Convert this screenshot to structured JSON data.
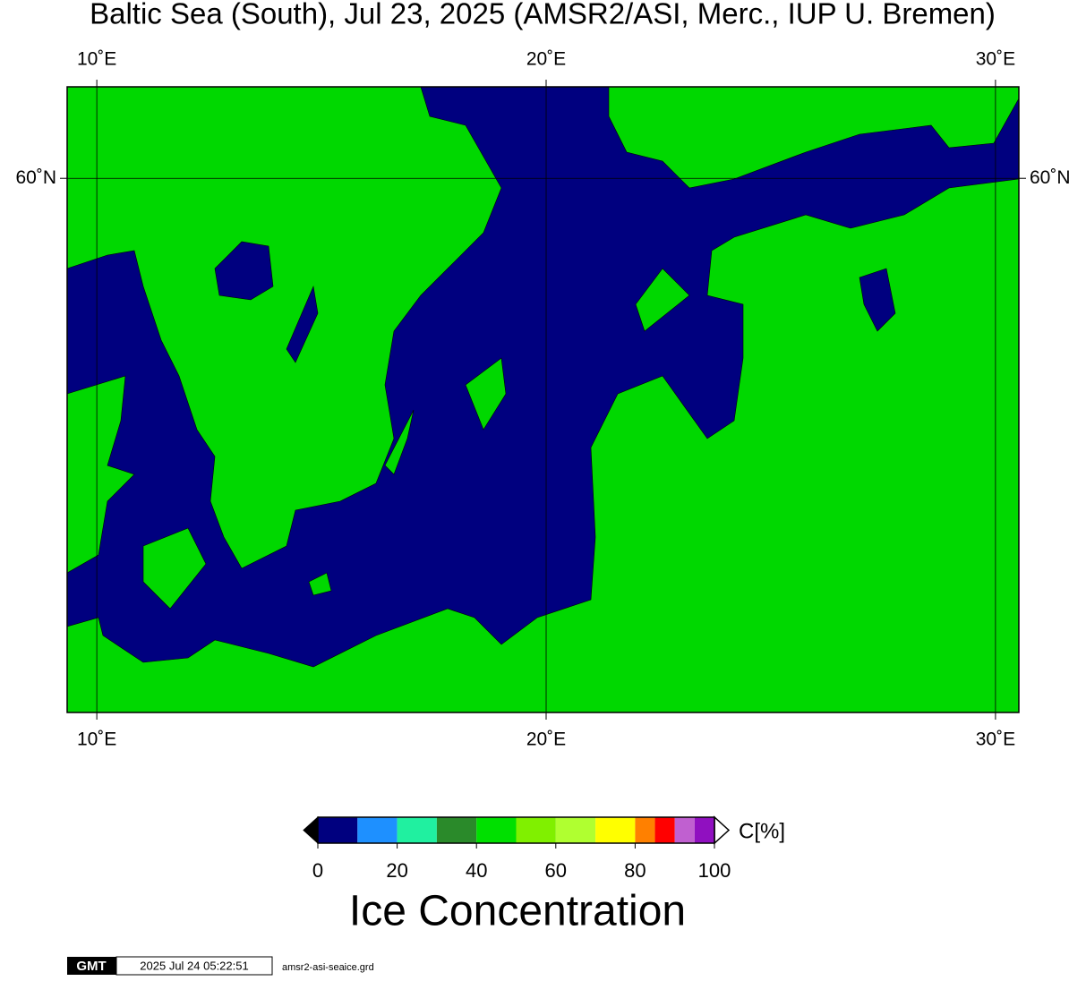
{
  "chart_data": {
    "type": "map",
    "title": "Baltic Sea (South), Jul 23, 2025 (AMSR2/ASI, Merc., IUP U. Bremen)",
    "xlim": [
      9.34,
      30.52
    ],
    "ylim": [
      53.52,
      61.0
    ],
    "xticks": [
      {
        "value": 10,
        "label": "10˚E"
      },
      {
        "value": 20,
        "label": "20˚E"
      },
      {
        "value": 30,
        "label": "30˚E"
      }
    ],
    "yticks": [
      {
        "value": 60,
        "label": "60˚N"
      }
    ],
    "grid": true,
    "colorbar": {
      "label": "Ice Concentration",
      "unit": "C[%]",
      "range": [
        0,
        100
      ],
      "ticks": [
        0,
        20,
        40,
        60,
        80,
        100
      ],
      "levels": [
        0,
        10,
        20,
        30,
        40,
        50,
        60,
        70,
        80,
        85,
        90,
        95,
        100
      ],
      "colors": [
        "#00007f",
        "#1e90ff",
        "#20f0a0",
        "#2a8a2a",
        "#00e000",
        "#80f000",
        "#b0ff30",
        "#ffff00",
        "#ff8000",
        "#ff0000",
        "#c060d0",
        "#9010c0"
      ]
    },
    "footer": {
      "logo": "GMT",
      "timestamp": "2025 Jul 24 05:22:51",
      "file": "amsr2-asi-seaice.grd"
    }
  }
}
